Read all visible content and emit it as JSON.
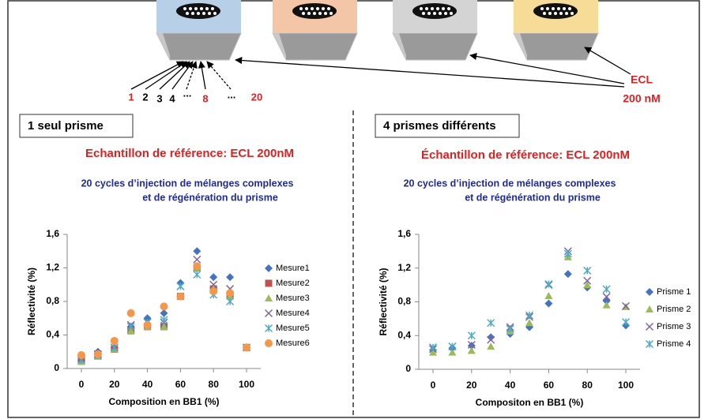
{
  "diagram": {
    "numbers": [
      "1",
      "2",
      "3",
      "4",
      "...",
      "8",
      "...",
      "20"
    ],
    "ecl": "ECL",
    "conc": "200 nM"
  },
  "panels": [
    {
      "label": "1 seul prisme",
      "heading": "Echantillon de référence: ECL 200nM",
      "subtitle": [
        "20 cycles d’injection de mélanges complexes",
        "et de régénération du prisme"
      ]
    },
    {
      "label": "4 prismes différents",
      "heading": "Échantillon de référence: ECL 200nM",
      "subtitle": [
        "20 cycles d’injection de mélanges complexes",
        "et de régénération du prisme"
      ]
    }
  ],
  "chart_data": [
    {
      "type": "scatter",
      "x_label": "Composition en BB1 (%)",
      "y_label": "Réflectivité (%)",
      "x": [
        0,
        10,
        20,
        30,
        40,
        50,
        60,
        70,
        80,
        90,
        100
      ],
      "xlim": [
        0,
        100
      ],
      "xticks": [
        0,
        20,
        40,
        60,
        80,
        100
      ],
      "ylim": [
        0,
        1.6
      ],
      "yticks": [
        0,
        {
          "value": 0.4,
          "label": "0,4"
        },
        {
          "value": 0.8,
          "label": "0,8"
        },
        {
          "value": 1.2,
          "label": "1,2"
        },
        {
          "value": 1.6,
          "label": "1,6"
        }
      ],
      "series": [
        {
          "name": "Mesure1",
          "color": "#4472c4",
          "marker": "diamond",
          "values": [
            0.1,
            0.2,
            0.25,
            0.5,
            0.6,
            0.66,
            1.02,
            1.4,
            1.09,
            1.09,
            0.25
          ]
        },
        {
          "name": "Mesure2",
          "color": "#c0504d",
          "marker": "square",
          "values": [
            0.1,
            0.15,
            0.23,
            0.45,
            0.5,
            0.5,
            0.86,
            1.2,
            0.95,
            0.88,
            0.25
          ]
        },
        {
          "name": "Mesure3",
          "color": "#9bbb59",
          "marker": "triangle",
          "values": [
            0.08,
            0.15,
            0.23,
            0.45,
            0.5,
            0.5,
            0.86,
            1.2,
            0.95,
            0.86,
            0.26
          ]
        },
        {
          "name": "Mesure4",
          "color": "#8064a2",
          "marker": "x",
          "values": [
            0.12,
            0.17,
            0.25,
            0.52,
            0.55,
            0.55,
            0.98,
            1.3,
            1.0,
            0.95,
            0.25
          ]
        },
        {
          "name": "Mesure5",
          "color": "#4bacc6",
          "marker": "star",
          "values": [
            0.1,
            0.15,
            0.25,
            0.5,
            0.55,
            0.58,
            0.98,
            1.12,
            0.88,
            0.8,
            0.25
          ]
        },
        {
          "name": "Mesure6",
          "color": "#f79646",
          "marker": "circle",
          "values": [
            0.16,
            0.17,
            0.33,
            0.66,
            0.52,
            0.74,
            0.86,
            1.22,
            0.92,
            0.9,
            0.25
          ]
        }
      ]
    },
    {
      "type": "scatter",
      "x_label": "Compositon en BB1 (%)",
      "y_label": "Réflectivité (%)",
      "x": [
        0,
        10,
        20,
        30,
        40,
        50,
        60,
        70,
        80,
        90,
        100
      ],
      "xlim": [
        0,
        100
      ],
      "xticks": [
        0,
        20,
        40,
        60,
        80,
        100
      ],
      "ylim": [
        0,
        1.6
      ],
      "yticks": [
        0,
        {
          "value": 0.4,
          "label": "0,4"
        },
        {
          "value": 0.8,
          "label": "0,8"
        },
        {
          "value": 1.2,
          "label": "1,2"
        },
        {
          "value": 1.6,
          "label": "1,6"
        }
      ],
      "series": [
        {
          "name": "Prisme 1",
          "color": "#4472c4",
          "marker": "diamond",
          "values": [
            0.23,
            0.25,
            0.28,
            0.38,
            0.42,
            0.5,
            0.78,
            1.13,
            0.97,
            0.81,
            0.52
          ]
        },
        {
          "name": "Prisme 2",
          "color": "#9bbb59",
          "marker": "triangle",
          "values": [
            0.2,
            0.2,
            0.22,
            0.27,
            0.45,
            0.55,
            0.87,
            1.33,
            1.0,
            0.76,
            0.74
          ]
        },
        {
          "name": "Prisme 3",
          "color": "#8064a2",
          "marker": "x",
          "values": [
            0.24,
            0.27,
            0.29,
            0.35,
            0.5,
            0.62,
            1.0,
            1.4,
            1.05,
            0.86,
            0.75
          ]
        },
        {
          "name": "Prisme 4",
          "color": "#4bacc6",
          "marker": "star",
          "values": [
            0.26,
            0.27,
            0.4,
            0.55,
            0.48,
            0.64,
            1.01,
            1.37,
            1.17,
            0.95,
            0.56
          ]
        }
      ]
    }
  ]
}
